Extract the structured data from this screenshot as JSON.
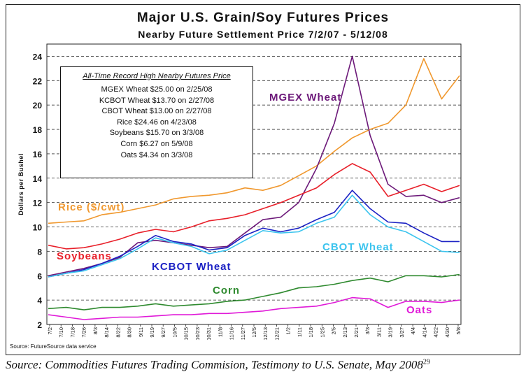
{
  "title": "Major U.S. Grain/Soy Futures Prices",
  "subtitle": "Nearby Future Settlement Price 7/2/07 - 5/12/08",
  "source_note": "Source: FutureSource data service",
  "caption": "Source: Commodities Futures Trading Commision, Testimony to U.S. Senate, May 2008",
  "caption_footnote": "29",
  "records_box": {
    "heading": "All-Time Record High Nearby Futures Price",
    "items": [
      "MGEX Wheat $25.00 on 2/25/08",
      "KCBOT Wheat $13.70 on 2/27/08",
      "CBOT Wheat $13.00 on 2/27/08",
      "Rice $24.46 on 4/23/08",
      "Soybeans $15.70 on 3/3/08",
      "Corn $6.27 on 5/9/08",
      "Oats $4.34 on 3/3/08"
    ]
  },
  "chart_data": {
    "type": "line",
    "title": "Major U.S. Grain/Soy Futures Prices",
    "subtitle": "Nearby Future Settlement Price 7/2/07 - 5/12/08",
    "ylabel": "Dollars per Bushel",
    "ylim": [
      2,
      25
    ],
    "yticks": [
      2,
      4,
      6,
      8,
      10,
      12,
      14,
      16,
      18,
      20,
      22,
      24
    ],
    "grid": "horizontal dashed",
    "xticks": [
      "7/2",
      "7/10",
      "7/18",
      "7/26",
      "8/3",
      "8/14",
      "8/22",
      "8/30",
      "9/11",
      "9/19",
      "9/27",
      "10/5",
      "10/15",
      "10/23",
      "10/31",
      "11/8",
      "11/16",
      "11/27",
      "12/5",
      "12/13",
      "12/21",
      "1/2",
      "1/11",
      "1/18",
      "1/25",
      "2/5",
      "2/13",
      "2/21",
      "3/3",
      "3/11",
      "3/19",
      "3/27",
      "4/4",
      "4/14",
      "4/22",
      "4/30",
      "5/8"
    ],
    "x": [
      "7/2/07",
      "7/16/07",
      "7/30/07",
      "8/13/07",
      "8/27/07",
      "9/10/07",
      "9/24/07",
      "10/8/07",
      "10/22/07",
      "11/5/07",
      "11/19/07",
      "12/3/07",
      "12/17/07",
      "12/31/07",
      "1/14/08",
      "1/28/08",
      "2/11/08",
      "2/25/08",
      "3/10/08",
      "3/24/08",
      "4/7/08",
      "4/21/08",
      "5/5/08",
      "5/12/08"
    ],
    "series": [
      {
        "name": "Rice ($/cwt)",
        "color": "#f0982e",
        "values": [
          10.3,
          10.4,
          10.5,
          11.0,
          11.2,
          11.5,
          11.8,
          12.3,
          12.5,
          12.6,
          12.8,
          13.2,
          13.0,
          13.4,
          14.2,
          15.0,
          16.2,
          17.3,
          18.0,
          18.5,
          20.0,
          23.8,
          20.5,
          22.4
        ]
      },
      {
        "name": "MGEX Wheat",
        "color": "#6d1a7a",
        "values": [
          6.0,
          6.3,
          6.6,
          7.0,
          7.5,
          8.7,
          8.9,
          8.7,
          8.5,
          8.3,
          8.4,
          9.5,
          10.6,
          10.8,
          12.0,
          14.8,
          18.5,
          24.0,
          17.5,
          13.5,
          12.5,
          12.6,
          12.0,
          12.4
        ]
      },
      {
        "name": "Soybeans",
        "color": "#e8202a",
        "values": [
          8.5,
          8.2,
          8.3,
          8.6,
          9.0,
          9.5,
          9.8,
          9.6,
          10.0,
          10.5,
          10.7,
          11.0,
          11.5,
          12.0,
          12.6,
          13.2,
          14.3,
          15.2,
          14.5,
          12.5,
          13.0,
          13.5,
          12.9,
          13.4
        ]
      },
      {
        "name": "KCBOT Wheat",
        "color": "#1c22c4",
        "values": [
          5.9,
          6.2,
          6.5,
          7.0,
          7.6,
          8.4,
          9.3,
          8.8,
          8.6,
          8.1,
          8.3,
          9.3,
          9.9,
          9.6,
          9.9,
          10.6,
          11.2,
          13.0,
          11.5,
          10.4,
          10.3,
          9.5,
          8.8,
          8.8
        ]
      },
      {
        "name": "CBOT Wheat",
        "color": "#3cc4ee",
        "values": [
          5.9,
          6.2,
          6.4,
          6.9,
          7.4,
          8.2,
          9.1,
          8.7,
          8.4,
          7.8,
          8.1,
          8.9,
          9.7,
          9.5,
          9.6,
          10.3,
          10.8,
          12.6,
          11.0,
          10.0,
          9.6,
          8.8,
          8.0,
          7.9
        ]
      },
      {
        "name": "Corn",
        "color": "#2f8a2f",
        "values": [
          3.3,
          3.4,
          3.2,
          3.4,
          3.4,
          3.5,
          3.7,
          3.5,
          3.6,
          3.7,
          3.9,
          4.0,
          4.3,
          4.6,
          5.0,
          5.1,
          5.3,
          5.6,
          5.8,
          5.5,
          6.0,
          6.0,
          5.9,
          6.1
        ]
      },
      {
        "name": "Oats",
        "color": "#e01ad8",
        "values": [
          2.8,
          2.6,
          2.4,
          2.5,
          2.6,
          2.6,
          2.7,
          2.8,
          2.8,
          2.9,
          2.9,
          3.0,
          3.1,
          3.3,
          3.4,
          3.5,
          3.8,
          4.2,
          4.1,
          3.4,
          3.9,
          3.9,
          3.8,
          4.0
        ]
      }
    ]
  }
}
